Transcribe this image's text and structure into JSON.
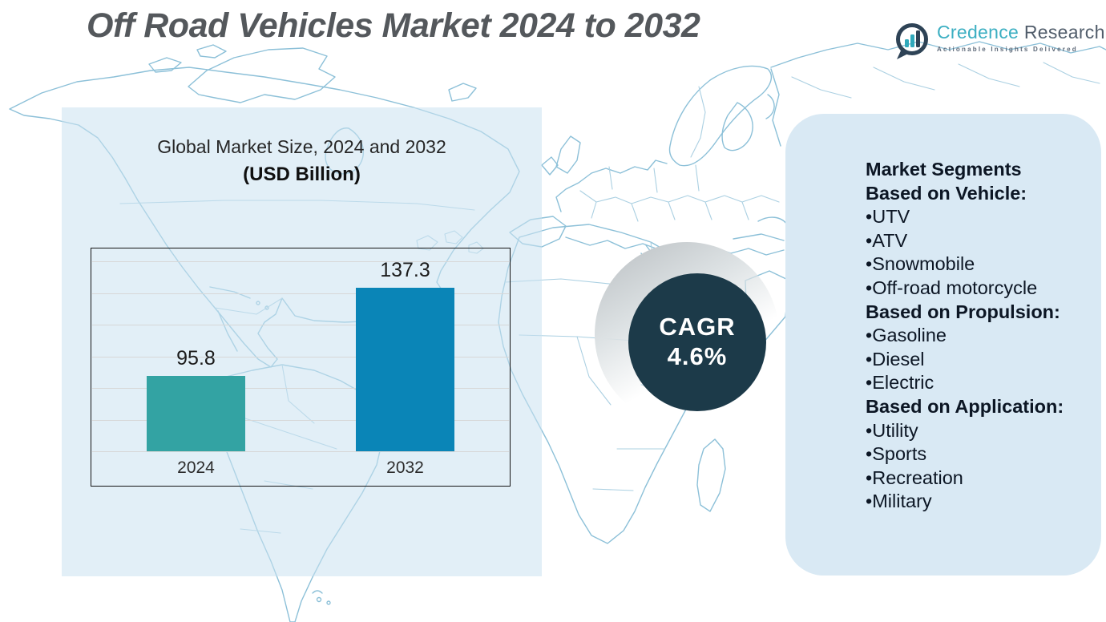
{
  "page": {
    "title": "Off Road Vehicles Market 2024 to 2032"
  },
  "brand": {
    "name_primary": "Credence",
    "name_secondary": "Research",
    "tagline": "Actionable Insights Delivered",
    "icon": "bar-chart-speech-bubble-icon",
    "colors": {
      "teal": "#3cafc2",
      "dark_slate": "#2e4356"
    }
  },
  "chart_card": {
    "title_line1": "Global Market Size, 2024 and 2032",
    "title_line2": "(USD Billion)"
  },
  "chart_data": {
    "type": "bar",
    "title": "Global Market Size, 2024 and 2032 (USD Billion)",
    "categories": [
      "2024",
      "2032"
    ],
    "values": [
      95.8,
      137.3
    ],
    "colors": [
      "#33a3a3",
      "#0a85b7"
    ],
    "unit": "USD Billion",
    "ylim": [
      60,
      156
    ],
    "gridlines": 7,
    "grid": true,
    "legend": false,
    "annotations": [
      "CAGR 4.6%"
    ]
  },
  "cagr_badge": {
    "label": "CAGR",
    "value": "4.6%",
    "circle_color": "#1c3a49",
    "text_color": "#ffffff"
  },
  "segments_panel": {
    "title": "Market Segments",
    "bullet": "•",
    "sections": [
      {
        "heading": "Based on Vehicle:",
        "items": [
          "UTV",
          "ATV",
          "Snowmobile",
          "Off-road motorcycle"
        ]
      },
      {
        "heading": "Based on Propulsion:",
        "items": [
          "Gasoline",
          "Diesel",
          "Electric"
        ]
      },
      {
        "heading": "Based on Application:",
        "items": [
          "Utility",
          "Sports",
          "Recreation",
          "Military"
        ]
      }
    ]
  }
}
